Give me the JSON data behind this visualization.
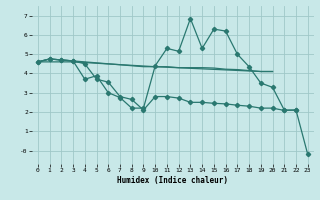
{
  "title": "",
  "xlabel": "Humidex (Indice chaleur)",
  "bg_color": "#c8e8e8",
  "grid_color": "#a0c8c8",
  "line_color": "#2a7870",
  "xlim": [
    -0.5,
    23.5
  ],
  "ylim": [
    -0.7,
    7.5
  ],
  "xtick_labels": [
    "0",
    "1",
    "2",
    "3",
    "4",
    "5",
    "6",
    "7",
    "8",
    "9",
    "10",
    "11",
    "12",
    "13",
    "14",
    "15",
    "16",
    "17",
    "18",
    "19",
    "20",
    "21",
    "22",
    "23"
  ],
  "ytick_labels": [
    "-0",
    "1",
    "2",
    "3",
    "4",
    "5",
    "6",
    "7"
  ],
  "yticks": [
    0,
    1,
    2,
    3,
    4,
    5,
    6,
    7
  ],
  "line1": {
    "x": [
      0,
      1,
      2,
      3,
      4,
      5,
      6,
      7,
      8,
      9,
      10,
      11,
      12,
      13,
      14,
      15,
      16,
      17,
      18,
      19,
      20
    ],
    "y": [
      4.6,
      4.75,
      4.7,
      4.65,
      4.6,
      4.55,
      4.5,
      4.45,
      4.4,
      4.35,
      4.35,
      4.35,
      4.3,
      4.3,
      4.3,
      4.28,
      4.22,
      4.2,
      4.15,
      4.1,
      4.1
    ],
    "marker": false
  },
  "line2": {
    "x": [
      0,
      1,
      2,
      3,
      4,
      5,
      6,
      7,
      8,
      9,
      10,
      11,
      12,
      13,
      14,
      15,
      16,
      17,
      18,
      19,
      20,
      21,
      22
    ],
    "y": [
      4.6,
      4.75,
      4.7,
      4.65,
      3.7,
      3.88,
      3.0,
      2.75,
      2.2,
      2.2,
      4.4,
      5.3,
      5.15,
      6.85,
      5.3,
      6.3,
      6.2,
      5.0,
      4.35,
      3.5,
      3.28,
      2.1,
      2.1
    ],
    "marker": true
  },
  "line3": {
    "x": [
      0,
      1,
      2,
      3,
      4,
      5,
      6,
      7,
      8,
      9,
      10,
      11,
      12,
      13,
      14,
      15,
      16,
      17,
      18,
      19,
      20,
      21,
      22,
      23
    ],
    "y": [
      4.6,
      4.75,
      4.7,
      4.65,
      4.5,
      3.7,
      3.55,
      2.8,
      2.65,
      2.1,
      2.8,
      2.8,
      2.72,
      2.5,
      2.5,
      2.45,
      2.42,
      2.35,
      2.3,
      2.2,
      2.2,
      2.08,
      2.1,
      -0.2
    ],
    "marker": true
  },
  "line4": {
    "x": [
      0,
      3,
      10,
      19,
      20
    ],
    "y": [
      4.6,
      4.6,
      4.35,
      4.1,
      4.1
    ],
    "marker": false
  }
}
